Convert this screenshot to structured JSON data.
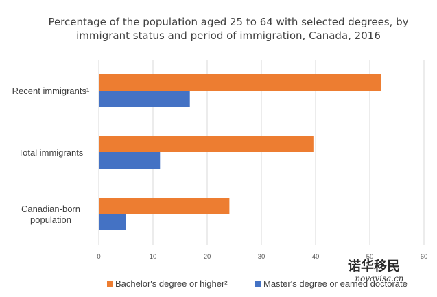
{
  "chart_data": {
    "type": "bar",
    "orientation": "horizontal",
    "title_lines": [
      "Percentage of the population aged 25 to 64 with selected degrees, by",
      "immigrant status and period of immigration, Canada, 2016"
    ],
    "categories": [
      [
        "Recent immigrants¹"
      ],
      [
        "Total immigrants"
      ],
      [
        "Canadian-born",
        "population"
      ]
    ],
    "series": [
      {
        "name": "Bachelor's degree or higher²",
        "color": "#ED7D31",
        "values": [
          52.1,
          39.6,
          24.1
        ]
      },
      {
        "name": "Master's degree or earned doctorate",
        "color": "#4472C4",
        "values": [
          16.8,
          11.3,
          5.0
        ]
      }
    ],
    "xlim": [
      0,
      60
    ],
    "xticks": [
      0,
      10,
      20,
      30,
      40,
      50,
      60
    ],
    "grid": true,
    "legend": "bottom"
  },
  "watermark": {
    "cn": "诺华移民",
    "en": "novavisa.cn"
  }
}
